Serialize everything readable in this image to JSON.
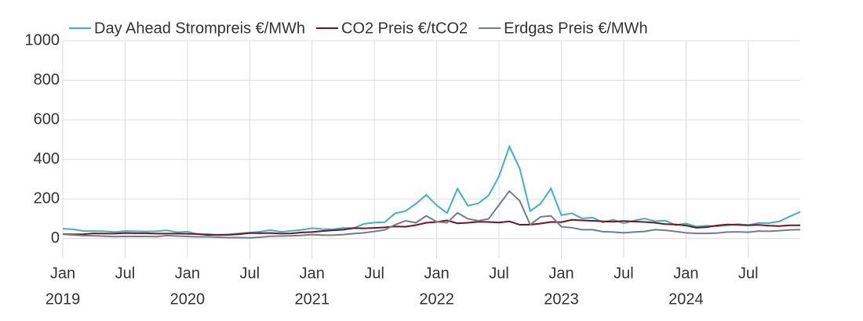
{
  "chart_data": {
    "type": "line",
    "x": [
      "2019-01",
      "2019-02",
      "2019-03",
      "2019-04",
      "2019-05",
      "2019-06",
      "2019-07",
      "2019-08",
      "2019-09",
      "2019-10",
      "2019-11",
      "2019-12",
      "2020-01",
      "2020-02",
      "2020-03",
      "2020-04",
      "2020-05",
      "2020-06",
      "2020-07",
      "2020-08",
      "2020-09",
      "2020-10",
      "2020-11",
      "2020-12",
      "2021-01",
      "2021-02",
      "2021-03",
      "2021-04",
      "2021-05",
      "2021-06",
      "2021-07",
      "2021-08",
      "2021-09",
      "2021-10",
      "2021-11",
      "2021-12",
      "2022-01",
      "2022-02",
      "2022-03",
      "2022-04",
      "2022-05",
      "2022-06",
      "2022-07",
      "2022-08",
      "2022-09",
      "2022-10",
      "2022-11",
      "2022-12",
      "2023-01",
      "2023-02",
      "2023-03",
      "2023-04",
      "2023-05",
      "2023-06",
      "2023-07",
      "2023-08",
      "2023-09",
      "2023-10",
      "2023-11",
      "2023-12",
      "2024-01",
      "2024-02",
      "2024-03",
      "2024-04",
      "2024-05",
      "2024-06",
      "2024-07",
      "2024-08",
      "2024-09",
      "2024-10",
      "2024-11",
      "2024-12"
    ],
    "series": [
      {
        "name": "Day Ahead Strompreis €/MWh",
        "color": "#3bb6bd",
        "values": [
          50,
          47,
          38,
          38,
          37,
          33,
          38,
          37,
          36,
          37,
          42,
          32,
          35,
          22,
          23,
          17,
          21,
          26,
          30,
          35,
          43,
          34,
          39,
          44,
          53,
          48,
          47,
          54,
          53,
          74,
          81,
          83,
          128,
          139,
          176,
          221,
          168,
          129,
          252,
          166,
          178,
          218,
          315,
          465,
          353,
          139,
          176,
          253,
          118,
          128,
          102,
          106,
          82,
          95,
          77,
          91,
          101,
          88,
          91,
          68,
          76,
          61,
          65,
          62,
          67,
          73,
          68,
          79,
          78,
          87,
          112,
          135
        ]
      },
      {
        "name": "CO2 Preis €/tCO2",
        "color": "#7b1020",
        "values": [
          23,
          21,
          22,
          26,
          25,
          25,
          28,
          27,
          27,
          25,
          25,
          25,
          24,
          23,
          18,
          19,
          19,
          22,
          28,
          27,
          28,
          25,
          26,
          31,
          33,
          38,
          42,
          45,
          53,
          52,
          54,
          57,
          61,
          60,
          68,
          80,
          84,
          92,
          77,
          80,
          85,
          84,
          81,
          87,
          70,
          70,
          76,
          84,
          83,
          95,
          92,
          90,
          87,
          85,
          89,
          86,
          84,
          80,
          73,
          71,
          66,
          55,
          58,
          66,
          71,
          69,
          67,
          69,
          65,
          63,
          67,
          67
        ]
      },
      {
        "name": "Erdgas Preis €/MWh",
        "color": "#6f7f88",
        "values": [
          22,
          18,
          15,
          14,
          12,
          10,
          11,
          11,
          11,
          10,
          15,
          13,
          11,
          9,
          9,
          7,
          5,
          5,
          4,
          7,
          12,
          13,
          14,
          16,
          20,
          17,
          17,
          20,
          25,
          29,
          36,
          44,
          70,
          90,
          80,
          115,
          85,
          80,
          130,
          100,
          90,
          100,
          170,
          240,
          190,
          70,
          110,
          115,
          60,
          55,
          45,
          45,
          35,
          33,
          29,
          33,
          36,
          45,
          42,
          36,
          29,
          26,
          26,
          28,
          33,
          34,
          32,
          38,
          37,
          40,
          44,
          45
        ]
      }
    ],
    "xlim": [
      "2019-01",
      "2024-12"
    ],
    "xticks": [
      {
        "value": "2019-01",
        "label": [
          "Jan",
          "2019"
        ]
      },
      {
        "value": "2019-07",
        "label": [
          "Jul"
        ]
      },
      {
        "value": "2020-01",
        "label": [
          "Jan",
          "2020"
        ]
      },
      {
        "value": "2020-07",
        "label": [
          "Jul"
        ]
      },
      {
        "value": "2021-01",
        "label": [
          "Jan",
          "2021"
        ]
      },
      {
        "value": "2021-07",
        "label": [
          "Jul"
        ]
      },
      {
        "value": "2022-01",
        "label": [
          "Jan",
          "2022"
        ]
      },
      {
        "value": "2022-07",
        "label": [
          "Jul"
        ]
      },
      {
        "value": "2023-01",
        "label": [
          "Jan",
          "2023"
        ]
      },
      {
        "value": "2023-07",
        "label": [
          "Jul"
        ]
      },
      {
        "value": "2024-01",
        "label": [
          "Jan",
          "2024"
        ]
      },
      {
        "value": "2024-07",
        "label": [
          "Jul"
        ]
      }
    ],
    "ylim": [
      -100,
      1000
    ],
    "yticks": [
      0,
      200,
      400,
      600,
      800,
      1000
    ],
    "grid": true,
    "legend": "top"
  }
}
